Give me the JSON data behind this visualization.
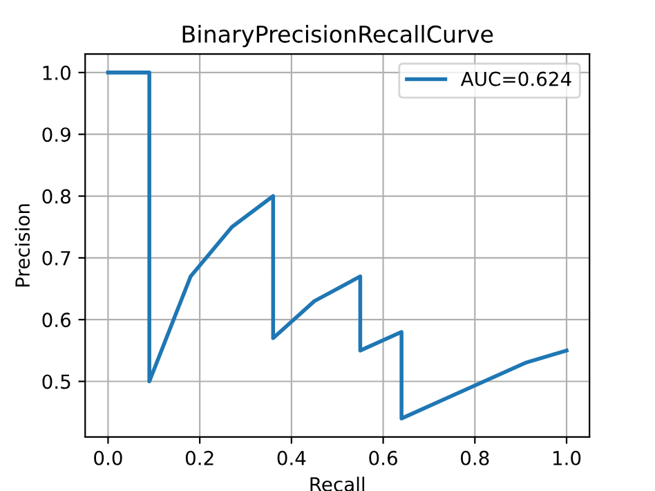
{
  "chart_data": {
    "type": "line",
    "title": "BinaryPrecisionRecallCurve",
    "xlabel": "Recall",
    "ylabel": "Precision",
    "x": [
      0.0,
      0.09,
      0.09,
      0.18,
      0.27,
      0.36,
      0.36,
      0.45,
      0.55,
      0.55,
      0.64,
      0.64,
      0.73,
      0.82,
      0.91,
      1.0
    ],
    "series": [
      {
        "name": "AUC=0.624",
        "color": "#1f77b4",
        "values": [
          1.0,
          1.0,
          0.5,
          0.67,
          0.75,
          0.8,
          0.57,
          0.63,
          0.67,
          0.55,
          0.58,
          0.44,
          0.47,
          0.5,
          0.53,
          0.55
        ]
      }
    ],
    "xlim": [
      -0.05,
      1.05
    ],
    "ylim": [
      0.41,
      1.03
    ],
    "xticks": [
      {
        "value": 0,
        "label": "0.0"
      },
      0.2,
      0.4,
      0.6,
      0.8,
      {
        "value": 1,
        "label": "1.0"
      }
    ],
    "yticks": [
      0.5,
      0.6,
      0.7,
      0.8,
      0.9,
      {
        "value": 1,
        "label": "1.0"
      }
    ],
    "grid": true,
    "legend": "top right",
    "marker": "none",
    "line_style": "solid"
  }
}
